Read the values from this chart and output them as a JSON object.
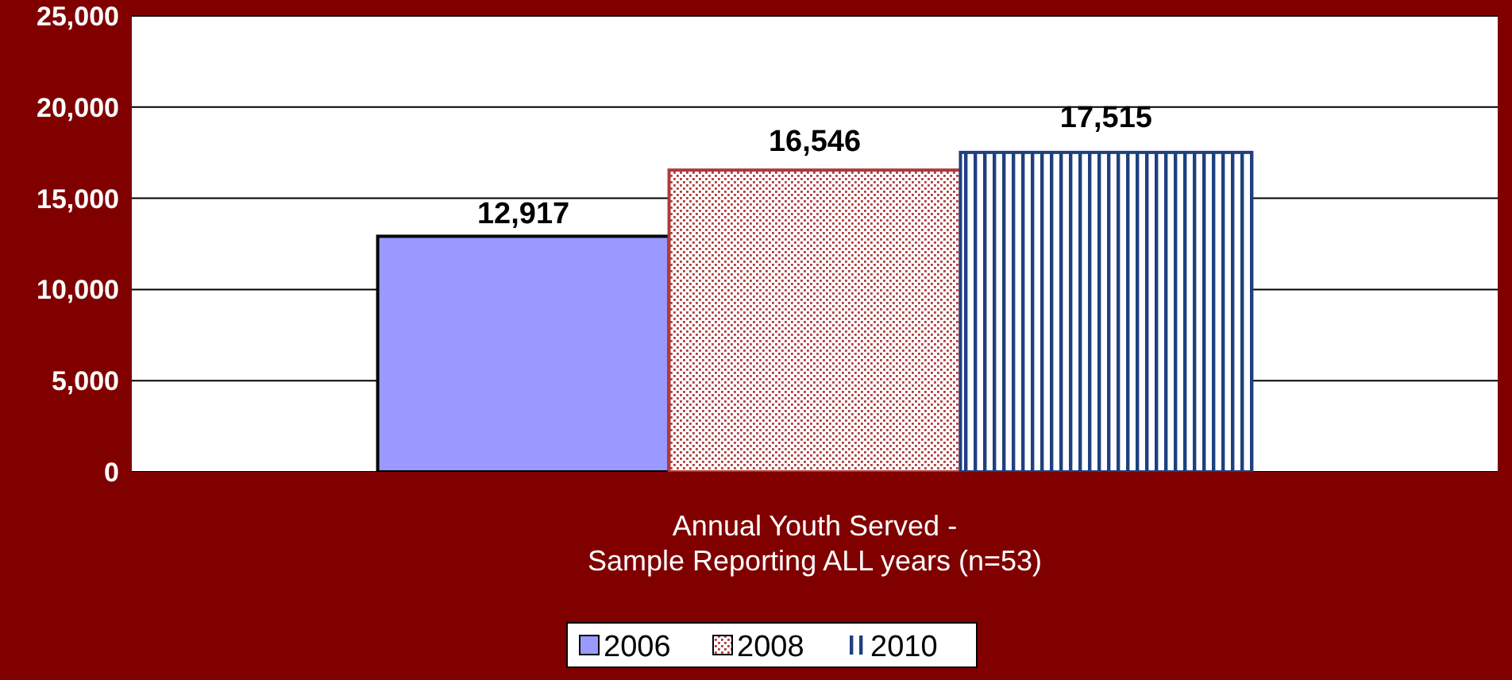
{
  "chart_data": {
    "type": "bar",
    "categories": [
      "Annual Youth Served -\nSample Reporting ALL years (n=53)"
    ],
    "series": [
      {
        "name": "2006",
        "color": "#9999ff",
        "values": [
          12917
        ],
        "value_labels": [
          "12,917"
        ]
      },
      {
        "name": "2008",
        "color": "#b03a3a",
        "values": [
          16546
        ],
        "value_labels": [
          "16,546"
        ]
      },
      {
        "name": "2010",
        "color": "#1f3f80",
        "values": [
          17515
        ],
        "value_labels": [
          "17,515"
        ]
      }
    ],
    "ylim": [
      0,
      25000
    ],
    "yticks": [
      {
        "value": 0,
        "label": "0"
      },
      {
        "value": 5000,
        "label": "5,000"
      },
      {
        "value": 10000,
        "label": "10,000"
      },
      {
        "value": 15000,
        "label": "15,000"
      },
      {
        "value": 20000,
        "label": "20,000"
      },
      {
        "value": 25000,
        "label": "25,000"
      }
    ],
    "grid": "y",
    "legend": "bottom"
  }
}
